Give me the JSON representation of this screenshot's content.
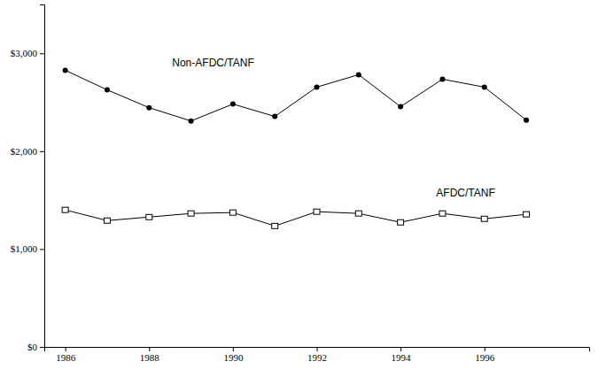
{
  "chart_data": {
    "type": "line",
    "x": [
      1986,
      1987,
      1988,
      1989,
      1990,
      1991,
      1992,
      1993,
      1994,
      1995,
      1996,
      1997
    ],
    "series": [
      {
        "name": "Non-AFDC/TANF",
        "color": "#000000",
        "marker": "circle",
        "values": [
          2827,
          2627,
          2445,
          2309,
          2482,
          2355,
          2655,
          2782,
          2455,
          2736,
          2655,
          2318
        ]
      },
      {
        "name": "AFDC/TANF",
        "color": "#000000",
        "marker": "square",
        "values": [
          1400,
          1291,
          1327,
          1364,
          1373,
          1236,
          1382,
          1364,
          1273,
          1364,
          1309,
          1355
        ]
      }
    ],
    "xlim": [
      1985.5,
      1998.5
    ],
    "xticks": [
      1986,
      1988,
      1990,
      1992,
      1994,
      1996
    ],
    "ylim": [
      0,
      3500
    ],
    "yticks": [
      {
        "value": 0,
        "label": "$0"
      },
      {
        "value": 1000,
        "label": "$1,000"
      },
      {
        "value": 2000,
        "label": "$2,000"
      },
      {
        "value": 3000,
        "label": "$3,000"
      }
    ],
    "grid": false
  }
}
